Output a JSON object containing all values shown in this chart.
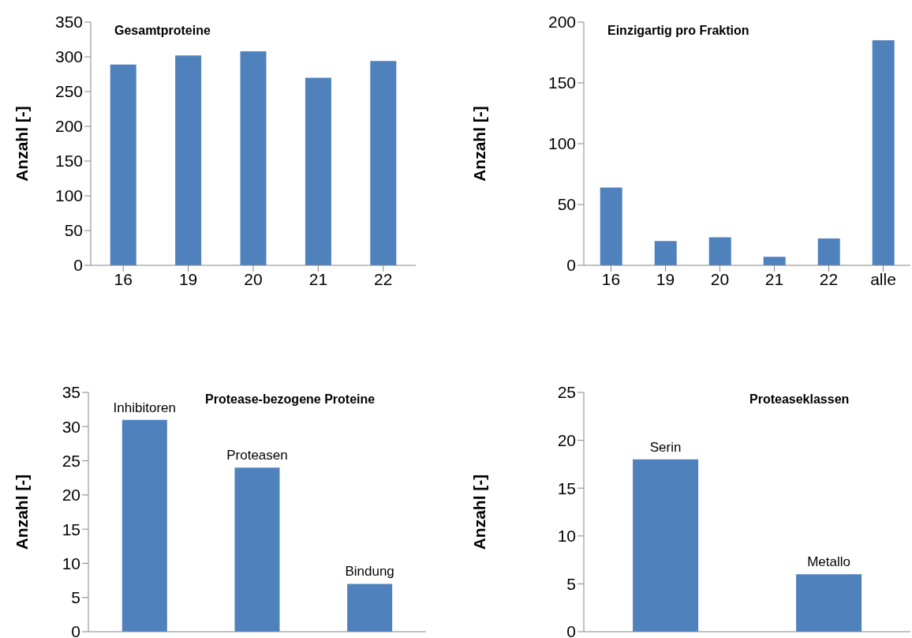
{
  "chart_data": [
    {
      "type": "bar",
      "title": "Gesamtproteine",
      "ylabel": "Anzahl [-]",
      "categories": [
        "16",
        "19",
        "20",
        "21",
        "22"
      ],
      "values": [
        289,
        302,
        308,
        270,
        294
      ],
      "color": "#4f81bd",
      "ylim": [
        0,
        350
      ],
      "yticks": [
        0,
        50,
        100,
        150,
        200,
        250,
        300,
        350
      ],
      "grid": false,
      "legend": false
    },
    {
      "type": "bar",
      "title": "Einzigartig pro Fraktion",
      "ylabel": "Anzahl [-]",
      "categories": [
        "16",
        "19",
        "20",
        "21",
        "22",
        "alle"
      ],
      "values": [
        64,
        20,
        23,
        7,
        22,
        185
      ],
      "color": "#4f81bd",
      "ylim": [
        0,
        200
      ],
      "yticks": [
        0,
        50,
        100,
        150,
        200
      ],
      "grid": false,
      "legend": false
    },
    {
      "type": "bar",
      "title": "Protease-bezogene Proteine",
      "ylabel": "Anzahl [-]",
      "categories": [
        "Inhibitoren",
        "Proteasen",
        "Bindung"
      ],
      "values": [
        31,
        24,
        7
      ],
      "color": "#4f81bd",
      "ylim": [
        0,
        35
      ],
      "yticks": [
        0,
        5,
        10,
        15,
        20,
        25,
        30,
        35
      ],
      "grid": false,
      "legend": false,
      "tick_labels": "y"
    },
    {
      "type": "bar",
      "title": "Proteaseklassen",
      "ylabel": "Anzahl [-]",
      "categories": [
        "Serin",
        "Metallo"
      ],
      "values": [
        18,
        6
      ],
      "color": "#4f81bd",
      "ylim": [
        0,
        25
      ],
      "yticks": [
        0,
        5,
        10,
        15,
        20,
        25
      ],
      "grid": false,
      "legend": false,
      "tick_labels": "y"
    }
  ]
}
